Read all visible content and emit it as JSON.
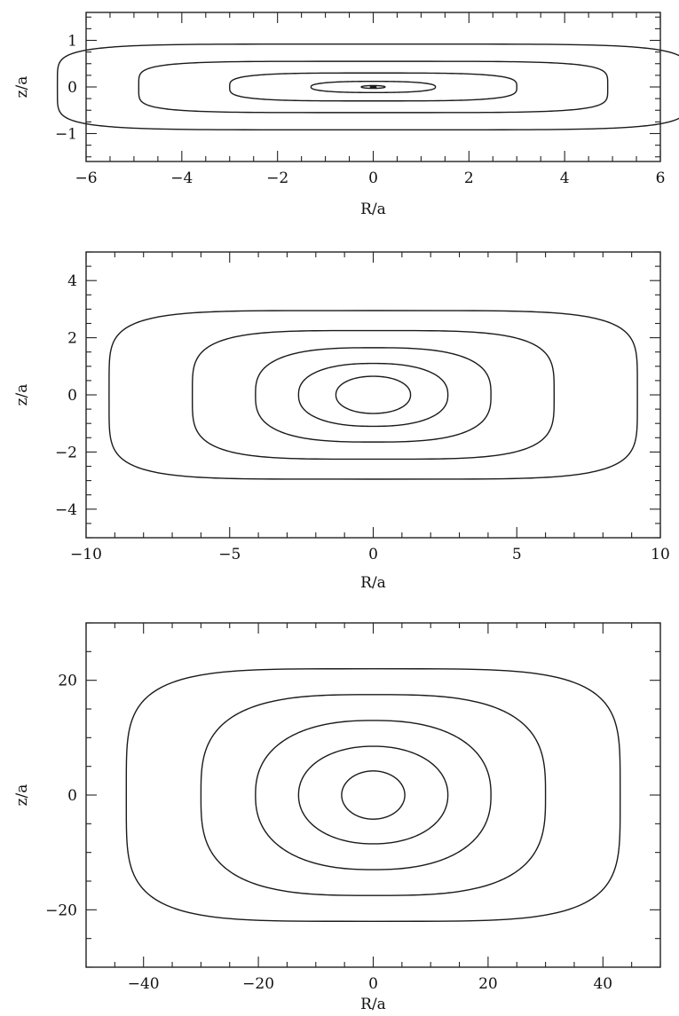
{
  "chart_data": [
    {
      "type": "line",
      "xlabel": "R/a",
      "ylabel": "z/a",
      "xlim": [
        -6,
        6
      ],
      "ylim": [
        -1.6,
        1.6
      ],
      "xticks": [
        -6,
        -4,
        -2,
        0,
        2,
        4,
        6
      ],
      "yticks": [
        -1,
        0,
        1
      ],
      "xtick_labels": [
        "−6",
        "−4",
        "−2",
        "0",
        "2",
        "4",
        "6"
      ],
      "ytick_labels": [
        "−1",
        "0",
        "1"
      ],
      "xminor_step": 0.5,
      "yminor_step": 0.25,
      "center_mark": true,
      "contours": [
        {
          "R_extent": 0.25,
          "z_extent": 0.03,
          "shape": 1.0
        },
        {
          "R_extent": 1.3,
          "z_extent": 0.12,
          "shape": 0.8
        },
        {
          "R_extent": 3.0,
          "z_extent": 0.3,
          "shape": 0.55
        },
        {
          "R_extent": 4.9,
          "z_extent": 0.55,
          "shape": 0.4
        },
        {
          "R_extent": 6.6,
          "z_extent": 0.92,
          "shape": 0.35
        }
      ],
      "grid": false
    },
    {
      "type": "line",
      "xlabel": "R/a",
      "ylabel": "z/a",
      "xlim": [
        -10,
        10
      ],
      "ylim": [
        -5,
        5
      ],
      "xticks": [
        -10,
        -5,
        0,
        5,
        10
      ],
      "yticks": [
        -4,
        -2,
        0,
        2,
        4
      ],
      "xtick_labels": [
        "−10",
        "−5",
        "0",
        "5",
        "10"
      ],
      "ytick_labels": [
        "−4",
        "−2",
        "0",
        "2",
        "4"
      ],
      "xminor_step": 1,
      "yminor_step": 0.5,
      "center_mark": false,
      "contours": [
        {
          "R_extent": 1.3,
          "z_extent": 0.65,
          "shape": 0.95
        },
        {
          "R_extent": 2.6,
          "z_extent": 1.1,
          "shape": 0.85
        },
        {
          "R_extent": 4.1,
          "z_extent": 1.65,
          "shape": 0.7
        },
        {
          "R_extent": 6.3,
          "z_extent": 2.25,
          "shape": 0.5
        },
        {
          "R_extent": 9.2,
          "z_extent": 2.95,
          "shape": 0.38
        }
      ],
      "grid": false
    },
    {
      "type": "line",
      "xlabel": "R/a",
      "ylabel": "z/a",
      "xlim": [
        -50,
        50
      ],
      "ylim": [
        -30,
        30
      ],
      "xticks": [
        -40,
        -20,
        0,
        20,
        40
      ],
      "yticks": [
        -20,
        0,
        20
      ],
      "xtick_labels": [
        "−40",
        "−20",
        "0",
        "20",
        "40"
      ],
      "ytick_labels": [
        "−20",
        "0",
        "20"
      ],
      "xminor_step": 5,
      "yminor_step": 5,
      "center_mark": false,
      "contours": [
        {
          "R_extent": 5.5,
          "z_extent": 4.2,
          "shape": 1.0
        },
        {
          "R_extent": 13,
          "z_extent": 8.5,
          "shape": 0.95
        },
        {
          "R_extent": 20.5,
          "z_extent": 13,
          "shape": 0.85
        },
        {
          "R_extent": 30,
          "z_extent": 17.5,
          "shape": 0.65
        },
        {
          "R_extent": 43,
          "z_extent": 22,
          "shape": 0.45
        }
      ],
      "grid": false
    }
  ]
}
